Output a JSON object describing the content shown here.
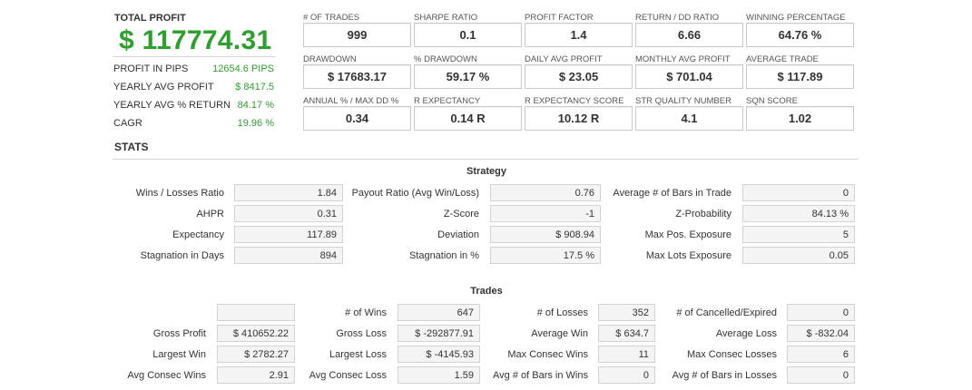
{
  "summary": {
    "total_profit_label": "TOTAL PROFIT",
    "total_profit_value": "$ 117774.31",
    "rows": [
      {
        "label": "PROFIT IN PIPS",
        "value": "12654.6 PIPS"
      },
      {
        "label": "YEARLY AVG PROFIT",
        "value": "$ 8417.5"
      },
      {
        "label": "YEARLY AVG % RETURN",
        "value": "84.17 %"
      },
      {
        "label": "CAGR",
        "value": "19.96 %"
      }
    ]
  },
  "metrics": [
    {
      "label": "# OF TRADES",
      "value": "999"
    },
    {
      "label": "SHARPE RATIO",
      "value": "0.1"
    },
    {
      "label": "PROFIT FACTOR",
      "value": "1.4"
    },
    {
      "label": "RETURN / DD RATIO",
      "value": "6.66"
    },
    {
      "label": "WINNING PERCENTAGE",
      "value": "64.76 %"
    },
    {
      "label": "DRAWDOWN",
      "value": "$ 17683.17"
    },
    {
      "label": "% DRAWDOWN",
      "value": "59.17 %"
    },
    {
      "label": "DAILY AVG PROFIT",
      "value": "$ 23.05"
    },
    {
      "label": "MONTHLY AVG PROFIT",
      "value": "$ 701.04"
    },
    {
      "label": "AVERAGE TRADE",
      "value": "$ 117.89"
    },
    {
      "label": "ANNUAL % / MAX DD %",
      "value": "0.34"
    },
    {
      "label": "R EXPECTANCY",
      "value": "0.14 R"
    },
    {
      "label": "R EXPECTANCY SCORE",
      "value": "10.12 R"
    },
    {
      "label": "STR QUALITY NUMBER",
      "value": "4.1"
    },
    {
      "label": "SQN SCORE",
      "value": "1.02"
    }
  ],
  "stats_title": "STATS",
  "strategy": {
    "title": "Strategy",
    "rows": [
      [
        {
          "label": "Wins / Losses Ratio",
          "value": "1.84"
        },
        {
          "label": "Payout Ratio (Avg Win/Loss)",
          "value": "0.76"
        },
        {
          "label": "Average # of Bars in Trade",
          "value": "0"
        }
      ],
      [
        {
          "label": "AHPR",
          "value": "0.31"
        },
        {
          "label": "Z-Score",
          "value": "-1"
        },
        {
          "label": "Z-Probability",
          "value": "84.13 %"
        }
      ],
      [
        {
          "label": "Expectancy",
          "value": "117.89"
        },
        {
          "label": "Deviation",
          "value": "$ 908.94"
        },
        {
          "label": "Max Pos. Exposure",
          "value": "5"
        }
      ],
      [
        {
          "label": "Stagnation in Days",
          "value": "894"
        },
        {
          "label": "Stagnation in %",
          "value": "17.5 %"
        },
        {
          "label": "Max Lots Exposure",
          "value": "0.05"
        }
      ]
    ]
  },
  "trades": {
    "title": "Trades",
    "rows": [
      [
        {
          "label": "",
          "value": ""
        },
        {
          "label": "# of Wins",
          "value": "647"
        },
        {
          "label": "# of Losses",
          "value": "352"
        },
        {
          "label": "# of Cancelled/Expired",
          "value": "0"
        }
      ],
      [
        {
          "label": "Gross Profit",
          "value": "$ 410652.22"
        },
        {
          "label": "Gross Loss",
          "value": "$ -292877.91"
        },
        {
          "label": "Average Win",
          "value": "$ 634.7"
        },
        {
          "label": "Average Loss",
          "value": "$ -832.04"
        }
      ],
      [
        {
          "label": "Largest Win",
          "value": "$ 2782.27"
        },
        {
          "label": "Largest Loss",
          "value": "$ -4145.93"
        },
        {
          "label": "Max Consec Wins",
          "value": "11"
        },
        {
          "label": "Max Consec Losses",
          "value": "6"
        }
      ],
      [
        {
          "label": "Avg Consec Wins",
          "value": "2.91"
        },
        {
          "label": "Avg Consec Loss",
          "value": "1.59"
        },
        {
          "label": "Avg # of Bars in Wins",
          "value": "0"
        },
        {
          "label": "Avg # of Bars in Losses",
          "value": "0"
        }
      ]
    ]
  },
  "colors": {
    "profit_green": "#2e9e2e",
    "text": "#333333",
    "box_bg": "#f4f4f4"
  }
}
